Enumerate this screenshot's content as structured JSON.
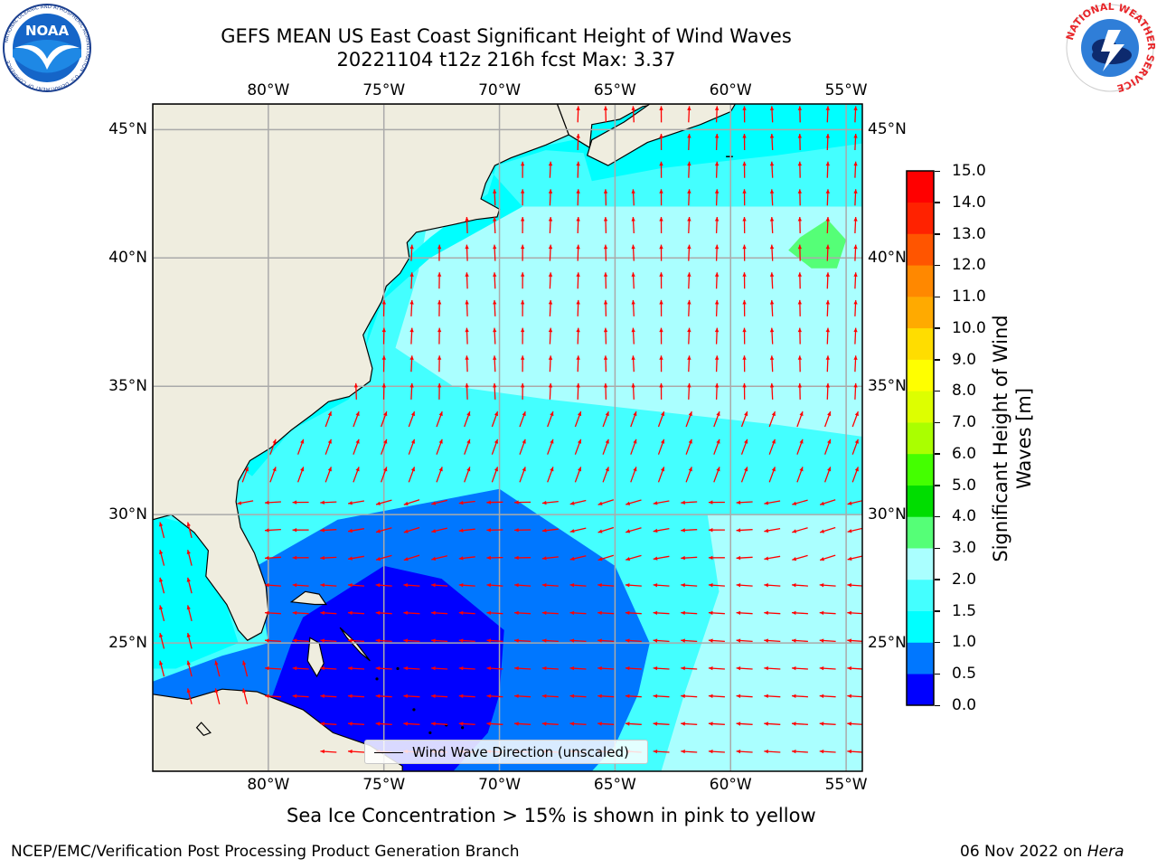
{
  "title": {
    "line1": "GEFS MEAN US East Coast Significant Height of Wind Waves",
    "line2": "20221104 t12z 216h fcst   Max: 3.37"
  },
  "logos": {
    "left": "NOAA",
    "left_ring": "NATIONAL OCEANIC AND ATMOSPHERIC ADMINISTRATION · U.S. DEPARTMENT OF COMMERCE",
    "right_ring": "NATIONAL WEATHER SERVICE"
  },
  "map": {
    "lon_labels": [
      "80°W",
      "75°W",
      "70°W",
      "65°W",
      "60°W",
      "55°W"
    ],
    "lat_labels": [
      "45°N",
      "40°N",
      "35°N",
      "30°N",
      "25°N"
    ],
    "lon_values": [
      -80,
      -75,
      -70,
      -65,
      -60,
      -55
    ],
    "lat_values": [
      45,
      40,
      35,
      30,
      25
    ],
    "extent": {
      "lon_min": -85,
      "lon_max": -54.3,
      "lat_min": 20,
      "lat_max": 46
    },
    "legend_label": "Wind Wave Direction (unscaled)",
    "colors": {
      "land": "#efeddf",
      "arrow": "#ff0000",
      "grid": "#aaaaaa",
      "coast": "#000000"
    }
  },
  "colorbar": {
    "label_line1": "Significant Height of Wind",
    "label_line2": "Waves [m]",
    "ticks": [
      "0.0",
      "0.5",
      "1.0",
      "1.5",
      "2.0",
      "3.0",
      "4.0",
      "5.0",
      "6.0",
      "7.0",
      "8.0",
      "9.0",
      "10.0",
      "11.0",
      "12.0",
      "13.0",
      "14.0",
      "15.0"
    ],
    "colors": [
      "#0000ff",
      "#0077ff",
      "#00ffff",
      "#44ffff",
      "#aaffff",
      "#55ff77",
      "#00dd00",
      "#44ff00",
      "#aaff00",
      "#ddff00",
      "#ffff00",
      "#ffdd00",
      "#ffaa00",
      "#ff8800",
      "#ff5500",
      "#ff2200",
      "#ff0000"
    ]
  },
  "notes": {
    "sea_ice": "Sea Ice Concentration > 15% is shown in pink to yellow"
  },
  "footer": {
    "left": "NCEP/EMC/Verification Post Processing Product Generation Branch",
    "right_date": "06 Nov 2022 on ",
    "right_host": "Hera"
  }
}
